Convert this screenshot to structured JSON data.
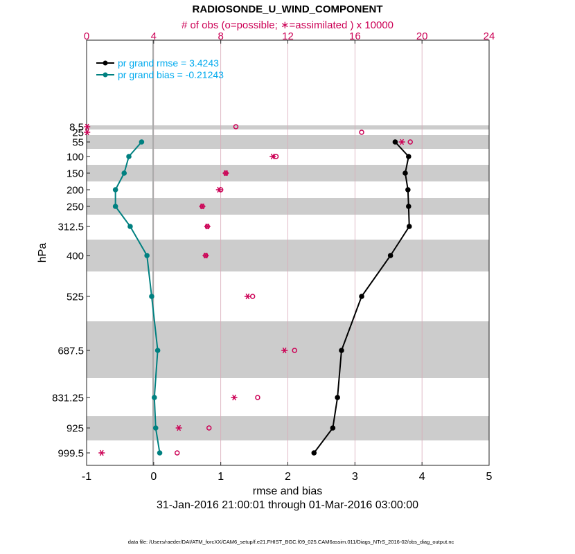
{
  "chart_data": {
    "type": "line",
    "title": "RADIOSONDE_U_WIND_COMPONENT",
    "top_axis_label": "# of obs (o=possible; ∗=assimilated ) x 10000",
    "xlabel": "rmse and bias",
    "ylabel": "hPa",
    "date_range": "31-Jan-2016 21:00:01 through 01-Mar-2016 03:00:00",
    "footer": "data file: /Users/raeder/DAI/ATM_forcXX/CAM6_setup/f.e21.FHIST_BGC.f09_025.CAM6assim.011/Diags_NTrS_2016-02/obs_diag_output.nc",
    "xlim": [
      -1,
      5
    ],
    "x_ticks": [
      "-1",
      "0",
      "1",
      "2",
      "3",
      "4",
      "5"
    ],
    "top_xlim": [
      0,
      24
    ],
    "top_ticks": [
      "0",
      "4",
      "8",
      "12",
      "16",
      "20",
      "24"
    ],
    "levels": [
      "8.5",
      "25",
      "55",
      "100",
      "150",
      "200",
      "250",
      "312.5",
      "400",
      "525",
      "687.5",
      "831.25",
      "925",
      "999.5"
    ],
    "legend": [
      {
        "name": "pr grand rmse = 3.4243",
        "color": "#000000"
      },
      {
        "name": "pr grand bias = -0.21243",
        "color": "#008080"
      }
    ],
    "series": [
      {
        "name": "rmse",
        "color": "#000000",
        "values": [
          null,
          null,
          3.6,
          3.8,
          3.75,
          3.79,
          3.8,
          3.81,
          3.53,
          3.1,
          2.8,
          2.74,
          2.67,
          2.39
        ]
      },
      {
        "name": "bias",
        "color": "#008080",
        "values": [
          null,
          null,
          -0.18,
          -0.37,
          -0.44,
          -0.57,
          -0.57,
          -0.35,
          -0.1,
          -0.03,
          0.06,
          0.01,
          0.03,
          0.09
        ]
      }
    ],
    "obs_possible": [
      8.9,
      16.4,
      19.3,
      11.3,
      8.3,
      8.0,
      6.9,
      7.2,
      7.1,
      9.9,
      12.4,
      10.2,
      7.3,
      5.4
    ],
    "obs_assimilated": [
      0.03,
      0.03,
      18.8,
      11.1,
      8.3,
      7.9,
      6.9,
      7.2,
      7.1,
      9.6,
      11.8,
      8.8,
      5.5,
      0.9
    ],
    "colors": {
      "accent": "#cc0055",
      "legend_text": "#00aaee",
      "band": "#cccccc",
      "grid_top": "#d8a8b8"
    }
  }
}
